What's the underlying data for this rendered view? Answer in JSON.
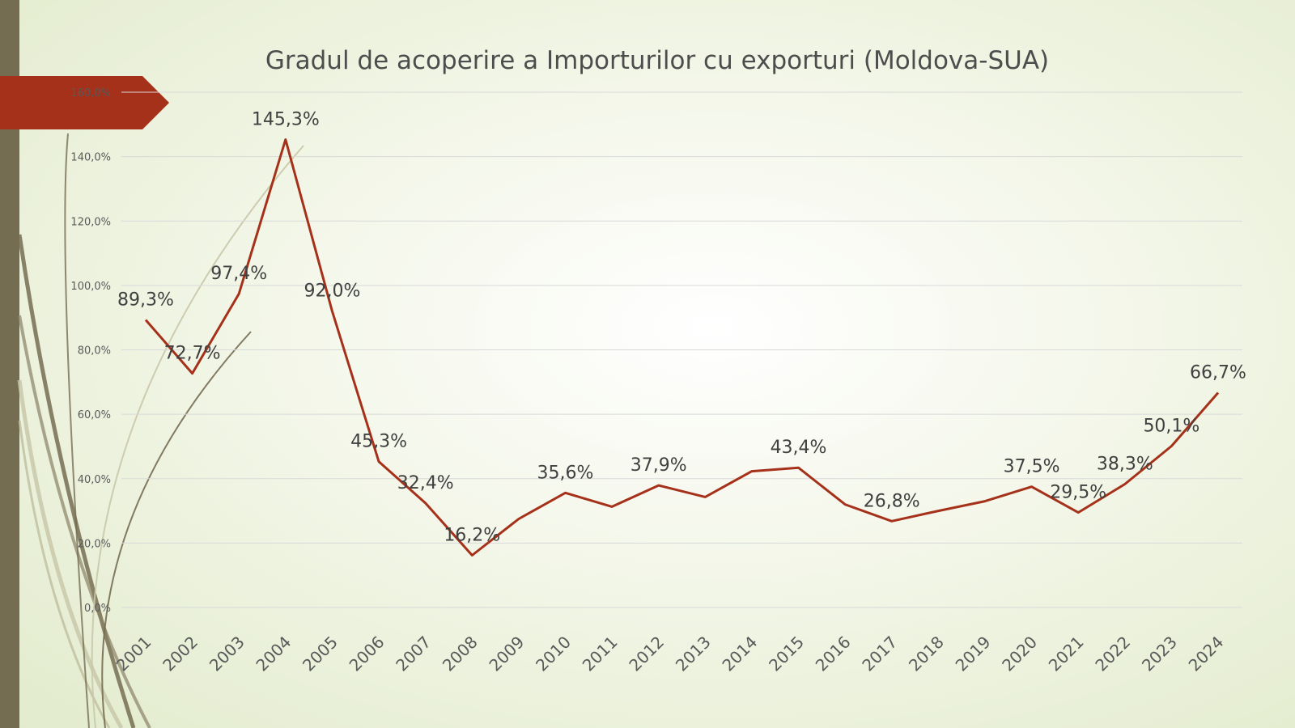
{
  "chart_data": {
    "type": "line",
    "title": "Gradul de acoperire a Importurilor cu exporturi (Moldova-SUA)",
    "xlabel": "",
    "ylabel": "",
    "categories": [
      "2001",
      "2002",
      "2003",
      "2004",
      "2005",
      "2006",
      "2007",
      "2008",
      "2009",
      "2010",
      "2011",
      "2012",
      "2013",
      "2014",
      "2015",
      "2016",
      "2017",
      "2018",
      "2019",
      "2020",
      "2021",
      "2022",
      "2023",
      "2024"
    ],
    "series": [
      {
        "name": "",
        "color": "#a5311a",
        "values": [
          89.3,
          72.7,
          97.4,
          145.3,
          92.0,
          45.3,
          32.4,
          16.2,
          27.5,
          35.6,
          31.3,
          37.9,
          34.3,
          42.3,
          43.4,
          32.0,
          26.8,
          30.0,
          33.0,
          37.5,
          29.5,
          38.3,
          50.1,
          66.7
        ]
      }
    ],
    "data_labels": [
      {
        "index": 0,
        "text": "89,3%"
      },
      {
        "index": 1,
        "text": "72,7%"
      },
      {
        "index": 2,
        "text": "97,4%"
      },
      {
        "index": 3,
        "text": "145,3%"
      },
      {
        "index": 4,
        "text": "92,0%"
      },
      {
        "index": 5,
        "text": "45,3%"
      },
      {
        "index": 6,
        "text": "32,4%"
      },
      {
        "index": 7,
        "text": "16,2%"
      },
      {
        "index": 9,
        "text": "35,6%"
      },
      {
        "index": 11,
        "text": "37,9%"
      },
      {
        "index": 14,
        "text": "43,4%"
      },
      {
        "index": 16,
        "text": "26,8%"
      },
      {
        "index": 19,
        "text": "37,5%"
      },
      {
        "index": 20,
        "text": "29,5%"
      },
      {
        "index": 21,
        "text": "38,3%"
      },
      {
        "index": 22,
        "text": "50,1%"
      },
      {
        "index": 23,
        "text": "66,7%"
      }
    ],
    "y_ticks": [
      "0,0%",
      "20,0%",
      "40,0%",
      "60,0%",
      "80,0%",
      "100,0%",
      "120,0%",
      "140,0%",
      "160,0%"
    ],
    "ylim": [
      0,
      160
    ],
    "grid": true,
    "legend": "none"
  },
  "colors": {
    "line": "#a5311a",
    "left_bar": "#756d52",
    "banner": "#a5311a"
  }
}
